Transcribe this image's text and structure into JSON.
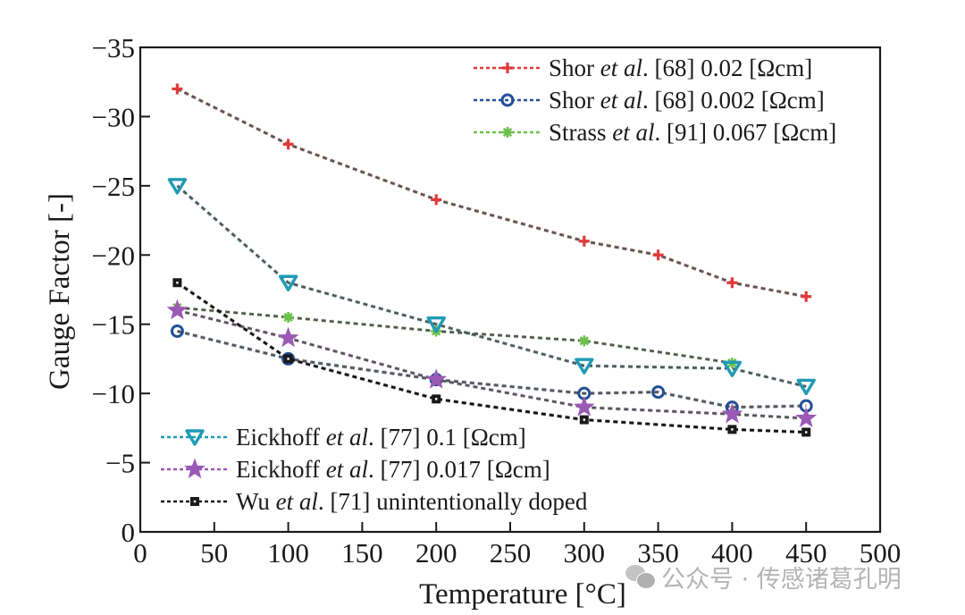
{
  "chart_data": {
    "type": "line",
    "title": "",
    "xlabel": "Temperature [°C]",
    "ylabel": "Gauge Factor [-]",
    "xlim": [
      0,
      500
    ],
    "ylim": [
      0,
      -35
    ],
    "x_ticks": [
      0,
      50,
      100,
      150,
      200,
      250,
      300,
      350,
      400,
      450,
      500
    ],
    "x_tick_labels": [
      "0",
      "50",
      "100",
      "150",
      "200",
      "250",
      "300",
      "350",
      "400",
      "450",
      "500"
    ],
    "y_ticks": [
      0,
      -5,
      -10,
      -15,
      -20,
      -25,
      -30,
      -35
    ],
    "y_tick_labels": [
      "0",
      "−5",
      "−10",
      "−15",
      "−20",
      "−25",
      "−30",
      "−35"
    ],
    "grid": false,
    "legend_upper": {
      "placement": "top-right"
    },
    "legend_lower": {
      "placement": "bottom-left"
    },
    "series": [
      {
        "name": "Shor et al. [68] 0.02 [Ωcm]",
        "label_pre": "Shor ",
        "label_ital": "et al",
        "label_post": ". [68] 0.02 [Ωcm]",
        "marker": "plus",
        "color": "#e03a3a",
        "legend": "upper",
        "x": [
          25,
          100,
          200,
          300,
          350,
          400,
          450
        ],
        "y": [
          -32,
          -28,
          -24,
          -21,
          -20,
          -18,
          -17
        ]
      },
      {
        "name": "Shor et al. [68] 0.002 [Ωcm]",
        "label_pre": "Shor ",
        "label_ital": "et al",
        "label_post": ". [68] 0.002 [Ωcm]",
        "marker": "circle",
        "color": "#244f96",
        "legend": "upper",
        "x": [
          25,
          100,
          200,
          300,
          350,
          400,
          450
        ],
        "y": [
          -14.5,
          -12.5,
          -11,
          -10,
          -10.1,
          -9,
          -9.1
        ]
      },
      {
        "name": "Strass et al. [91] 0.067 [Ωcm]",
        "label_pre": "Strass ",
        "label_ital": "et al",
        "label_post": ". [91] 0.067 [Ωcm]",
        "marker": "asterisk",
        "color": "#6cc04a",
        "legend": "upper",
        "x": [
          25,
          100,
          200,
          300,
          400
        ],
        "y": [
          -16.2,
          -15.5,
          -14.5,
          -13.8,
          -12.2
        ]
      },
      {
        "name": "Eickhoff et al. [77] 0.1 [Ωcm]",
        "label_pre": "Eickhoff ",
        "label_ital": "et al",
        "label_post": ". [77] 0.1 [Ωcm]",
        "marker": "triangle-down",
        "color": "#1f9bb5",
        "legend": "lower",
        "x": [
          25,
          100,
          200,
          300,
          400,
          450
        ],
        "y": [
          -25,
          -18,
          -15,
          -12,
          -11.8,
          -10.5
        ]
      },
      {
        "name": "Eickhoff et al. [77] 0.017 [Ωcm]",
        "label_pre": "Eickhoff ",
        "label_ital": "et al",
        "label_post": ". [77] 0.017 [Ωcm]",
        "marker": "star",
        "color": "#9b59b6",
        "legend": "lower",
        "x": [
          25,
          100,
          200,
          300,
          400,
          450
        ],
        "y": [
          -16,
          -14,
          -11,
          -9,
          -8.5,
          -8.2
        ]
      },
      {
        "name": "Wu et al. [71] unintentionally doped",
        "label_pre": "Wu ",
        "label_ital": "et al",
        "label_post": ". [71] unintentionally doped",
        "marker": "square",
        "color": "#1a1a1a",
        "legend": "lower",
        "x": [
          25,
          100,
          200,
          300,
          400,
          450
        ],
        "y": [
          -18,
          -12.5,
          -9.6,
          -8.1,
          -7.4,
          -7.2
        ]
      }
    ]
  },
  "watermark": {
    "text": "公众号 · 传感诸葛孔明",
    "icon": "wechat-icon"
  }
}
